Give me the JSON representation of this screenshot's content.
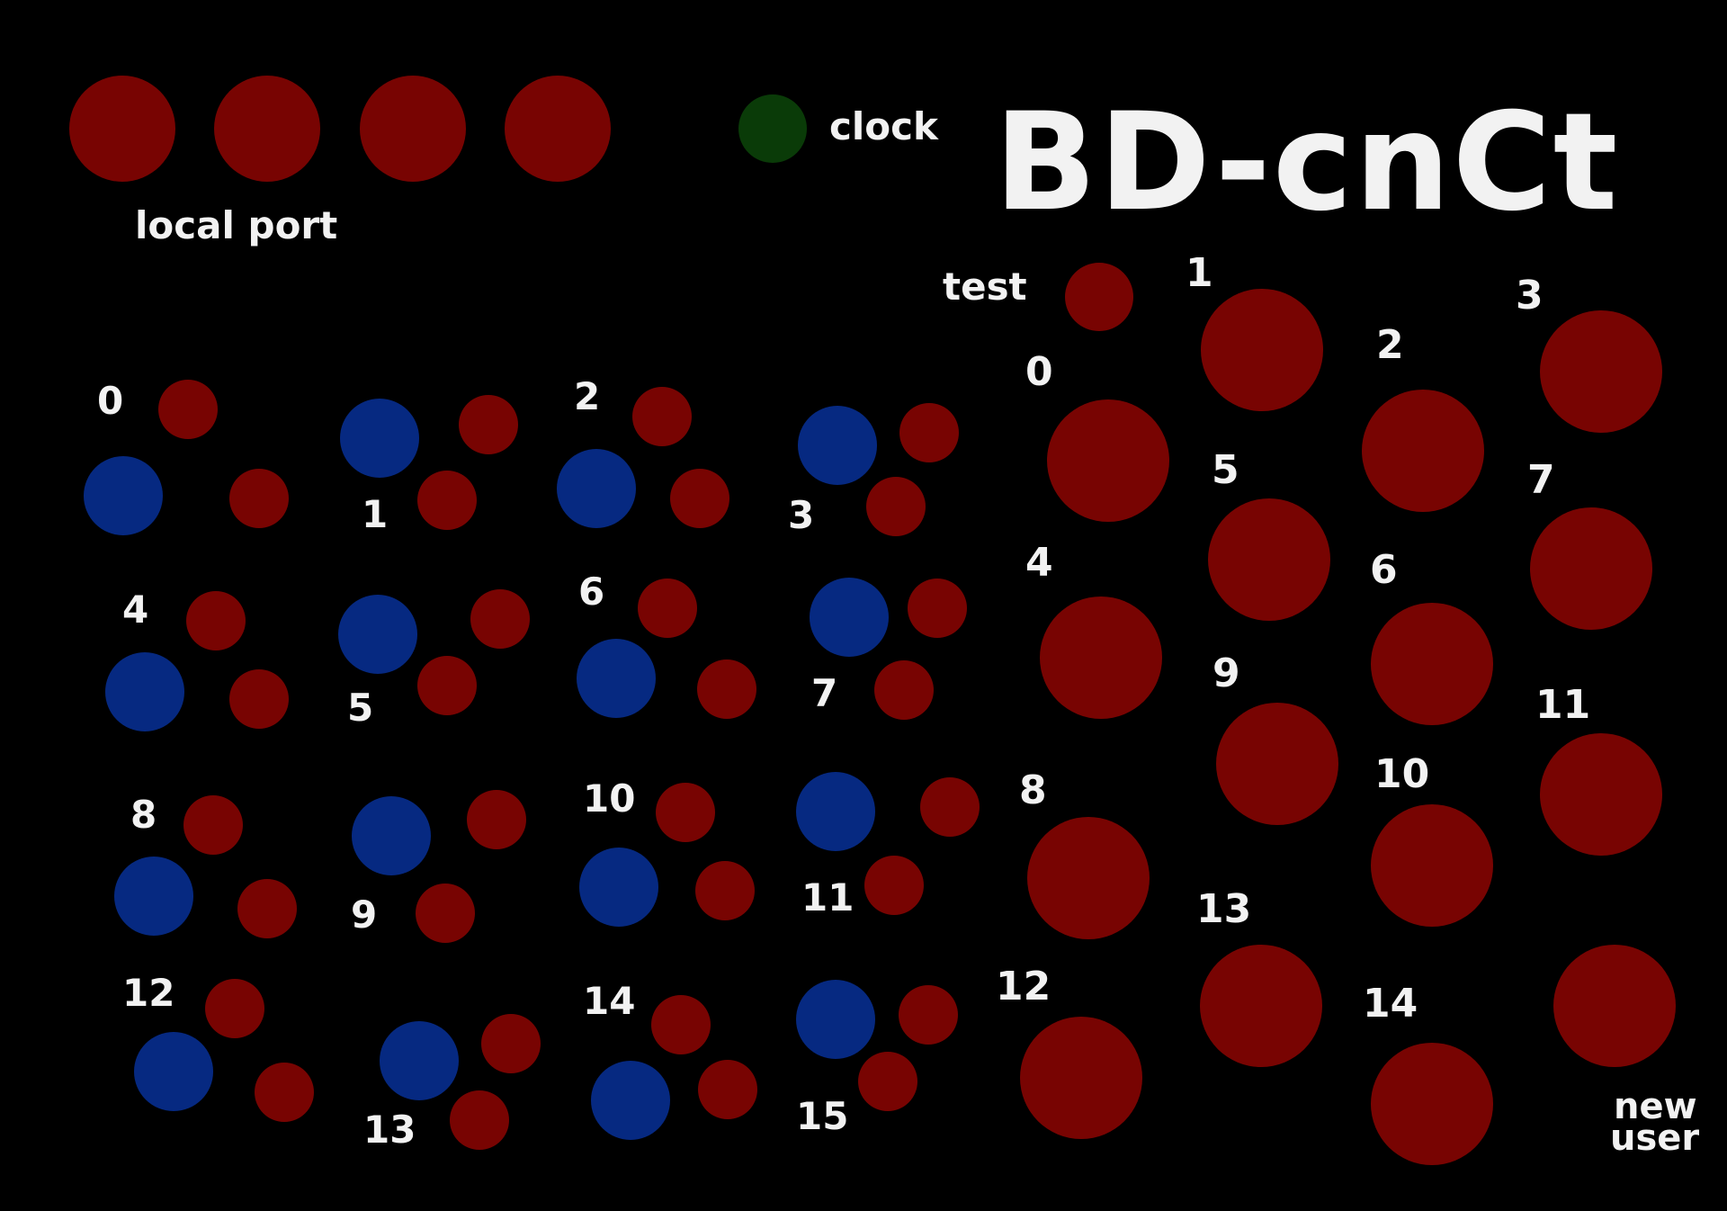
{
  "title": "BD-cnCt",
  "colors": {
    "background": "#000000",
    "inactive_red": "#780402",
    "active_blue": "#062981",
    "clock_green": "#0a3b08",
    "text": "#f2f2f2"
  },
  "local_port": {
    "label": "local port",
    "leds": [
      "port-led-0",
      "port-led-1",
      "port-led-2",
      "port-led-3"
    ]
  },
  "clock": {
    "label": "clock"
  },
  "test": {
    "label": "test"
  },
  "new_user": {
    "line1": "new",
    "line2": "user"
  },
  "channels": [
    {
      "label": "0"
    },
    {
      "label": "1"
    },
    {
      "label": "2"
    },
    {
      "label": "3"
    },
    {
      "label": "4"
    },
    {
      "label": "5"
    },
    {
      "label": "6"
    },
    {
      "label": "7"
    },
    {
      "label": "8"
    },
    {
      "label": "9"
    },
    {
      "label": "10"
    },
    {
      "label": "11"
    },
    {
      "label": "12"
    },
    {
      "label": "13"
    },
    {
      "label": "14"
    },
    {
      "label": "15"
    }
  ],
  "buttons": [
    {
      "label": "0"
    },
    {
      "label": "1"
    },
    {
      "label": "2"
    },
    {
      "label": "3"
    },
    {
      "label": "4"
    },
    {
      "label": "5"
    },
    {
      "label": "6"
    },
    {
      "label": "7"
    },
    {
      "label": "8"
    },
    {
      "label": "9"
    },
    {
      "label": "10"
    },
    {
      "label": "11"
    },
    {
      "label": "12"
    },
    {
      "label": "13"
    },
    {
      "label": "14"
    }
  ]
}
